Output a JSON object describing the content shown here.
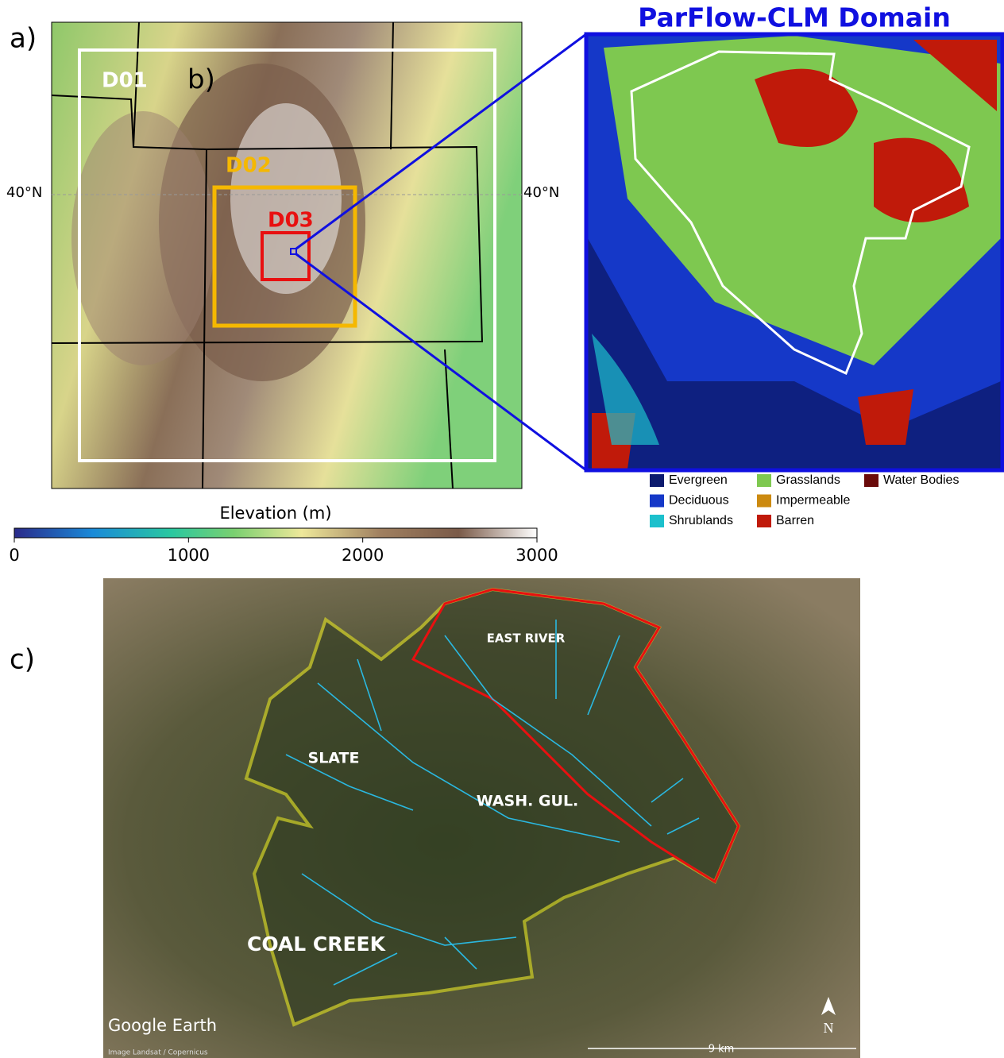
{
  "panels": {
    "a": "a)",
    "b": "b)",
    "c": "c)"
  },
  "map_a": {
    "domains": [
      "D01",
      "D02",
      "D03"
    ],
    "latitude": "40°N"
  },
  "colorbar": {
    "label": "Elevation (m)",
    "lim": [
      0,
      3000
    ],
    "ticks": [
      0,
      1000,
      2000,
      3000
    ]
  },
  "map_b": {
    "title": "ParFlow-CLM Domain",
    "legend": [
      {
        "name": "Evergreen",
        "color": "#0c1a6e"
      },
      {
        "name": "Deciduous",
        "color": "#1538c8"
      },
      {
        "name": "Shrublands",
        "color": "#1cc0cc"
      },
      {
        "name": "Grasslands",
        "color": "#7ec850"
      },
      {
        "name": "Impermeable",
        "color": "#cc8a10"
      },
      {
        "name": "Barren",
        "color": "#c01a0a"
      },
      {
        "name": "Water Bodies",
        "color": "#6a0a0a"
      }
    ]
  },
  "map_c": {
    "basins": [
      "EAST RIVER",
      "SLATE",
      "WASH. GUL.",
      "COAL CREEK"
    ],
    "brand": "Google Earth",
    "credit": "Image Landsat / Copernicus",
    "scale": "9 km",
    "north": "N"
  }
}
